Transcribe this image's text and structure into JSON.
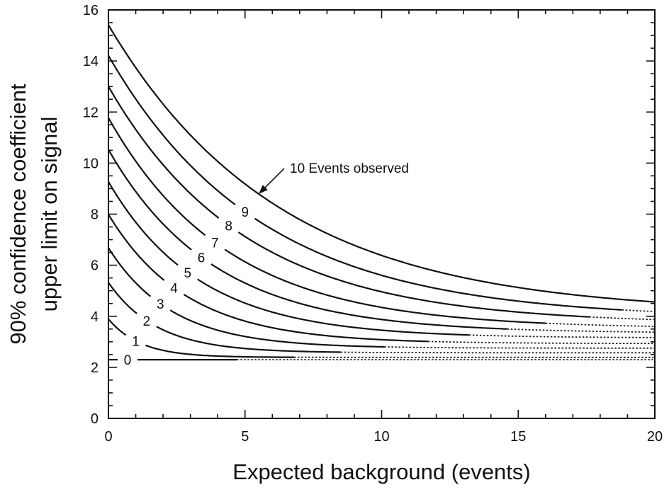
{
  "chart_data": {
    "type": "line",
    "title": "",
    "xlabel": "Expected background (events)",
    "ylabel_lines": [
      "90% confidence coefficient",
      "upper limit on signal"
    ],
    "xlim": [
      0,
      20
    ],
    "ylim": [
      0,
      16
    ],
    "xticks": [
      0,
      5,
      10,
      15,
      20
    ],
    "yticks": [
      0,
      2,
      4,
      6,
      8,
      10,
      12,
      14,
      16
    ],
    "grid": false,
    "legend": "none",
    "annotation": {
      "text": "10 Events observed",
      "target_series": "10",
      "target_x": 5.5
    },
    "series": [
      {
        "name": "0",
        "label_x": 0.7,
        "solid_until": 4.7,
        "y0": 2.3,
        "amp": 0.0,
        "k": 0.5
      },
      {
        "name": "1",
        "label_x": 1.0,
        "solid_until": 6.8,
        "y0": 3.89,
        "amp": 1.5,
        "k": 0.85
      },
      {
        "name": "2",
        "label_x": 1.4,
        "solid_until": 8.5,
        "y0": 5.32,
        "amp": 2.75,
        "k": 0.56
      },
      {
        "name": "3",
        "label_x": 1.9,
        "solid_until": 10.1,
        "y0": 6.68,
        "amp": 3.93,
        "k": 0.43
      },
      {
        "name": "4",
        "label_x": 2.4,
        "solid_until": 11.7,
        "y0": 7.99,
        "amp": 5.06,
        "k": 0.35
      },
      {
        "name": "5",
        "label_x": 2.9,
        "solid_until": 13.2,
        "y0": 9.27,
        "amp": 6.12,
        "k": 0.3
      },
      {
        "name": "6",
        "label_x": 3.4,
        "solid_until": 14.6,
        "y0": 10.53,
        "amp": 7.19,
        "k": 0.26
      },
      {
        "name": "7",
        "label_x": 3.9,
        "solid_until": 16.0,
        "y0": 11.77,
        "amp": 8.25,
        "k": 0.23
      },
      {
        "name": "8",
        "label_x": 4.4,
        "solid_until": 17.6,
        "y0": 13.0,
        "amp": 9.3,
        "k": 0.2
      },
      {
        "name": "9",
        "label_x": 5.0,
        "solid_until": 18.8,
        "y0": 14.21,
        "amp": 10.31,
        "k": 0.18
      },
      {
        "name": "10",
        "label_x": null,
        "solid_until": 20.0,
        "y0": 15.41,
        "amp": 11.31,
        "k": 0.16
      }
    ]
  }
}
